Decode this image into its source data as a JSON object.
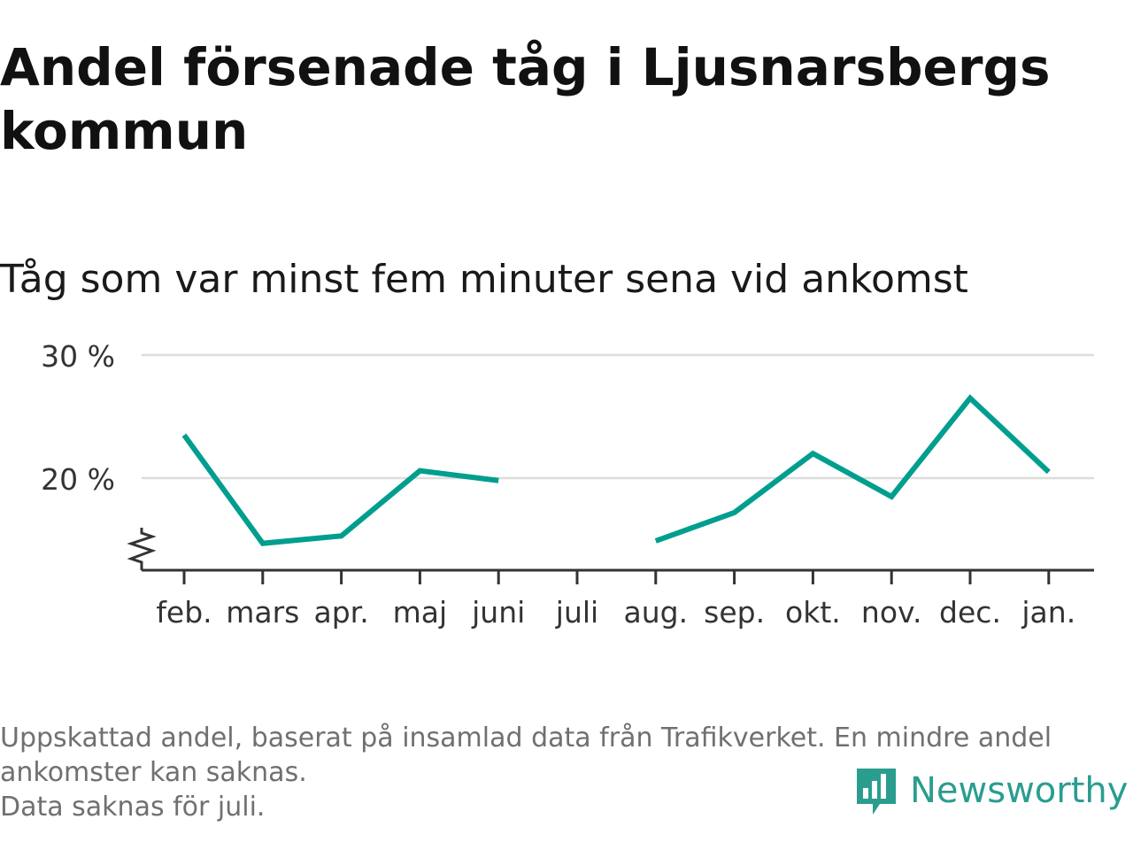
{
  "header": {
    "title": "Andel försenade tåg i Ljusnarsbergs kommun",
    "subtitle": "Tåg som var minst fem minuter sena vid ankomst"
  },
  "chart_data": {
    "type": "line",
    "categories": [
      "feb.",
      "mars",
      "apr.",
      "maj",
      "juni",
      "juli",
      "aug.",
      "sep.",
      "okt.",
      "nov.",
      "dec.",
      "jan."
    ],
    "series": [
      {
        "values": [
          23.5,
          14.7,
          15.3,
          20.6,
          19.8,
          null,
          14.9,
          17.2,
          22.0,
          18.5,
          26.5,
          20.5
        ]
      }
    ],
    "title": "Andel försenade tåg i Ljusnarsbergs kommun",
    "subtitle": "Tåg som var minst fem minuter sena vid ankomst",
    "ylim": [
      12.5,
      30
    ],
    "yticks": [
      20,
      30
    ],
    "ytick_labels": [
      "20 %",
      "30 %"
    ],
    "y_axis_break": true,
    "grid": "horizontal",
    "legend": "none",
    "line_color": "#009e8f"
  },
  "footnote": {
    "line1": "Uppskattad andel, baserat på insamlad data från Trafikverket. En mindre andel",
    "line2": "ankomster kan saknas.",
    "line3": "Data saknas för juli."
  },
  "logo": {
    "text": "Newsworthy",
    "icon": "newsworthy-bar-chart-icon",
    "color": "#2a9d8f"
  }
}
